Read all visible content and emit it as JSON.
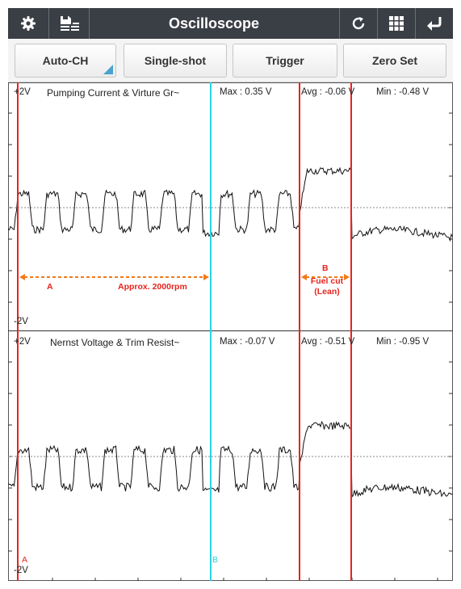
{
  "app": {
    "title": "Oscilloscope",
    "icons": [
      "gear-icon",
      "save-list-icon",
      "refresh-icon",
      "grid-icon",
      "back-icon"
    ]
  },
  "toolbar": {
    "auto_ch": "Auto-CH",
    "single_shot": "Single-shot",
    "trigger": "Trigger",
    "zero_set": "Zero Set"
  },
  "channels": [
    {
      "top_scale": "+2V",
      "bottom_scale": "-2V",
      "name": "Pumping Current & Virture Gr~",
      "max": "Max : 0.35 V",
      "avg": "Avg : -0.06 V",
      "min": "Min : -0.48 V"
    },
    {
      "top_scale": "+2V",
      "bottom_scale": "-2V",
      "name": "Nernst Voltage & Trim Resist~",
      "max": "Max : -0.07 V",
      "avg": "Avg : -0.51 V",
      "min": "Min : -0.95 V"
    }
  ],
  "annotations": {
    "a_label": "A",
    "a_text": "Approx. 2000rpm",
    "b_label": "B",
    "b_line1": "Fuel cut",
    "b_line2": "(Lean)"
  },
  "cursors": {
    "a_label": "A",
    "b_label": "B",
    "a_color": "#e8231c",
    "b_color": "#27d4e6"
  },
  "colors": {
    "titlebar": "#3a3e45",
    "accent": "#4aa3cf",
    "marker": "#e8231c",
    "trace": "#111111"
  }
}
